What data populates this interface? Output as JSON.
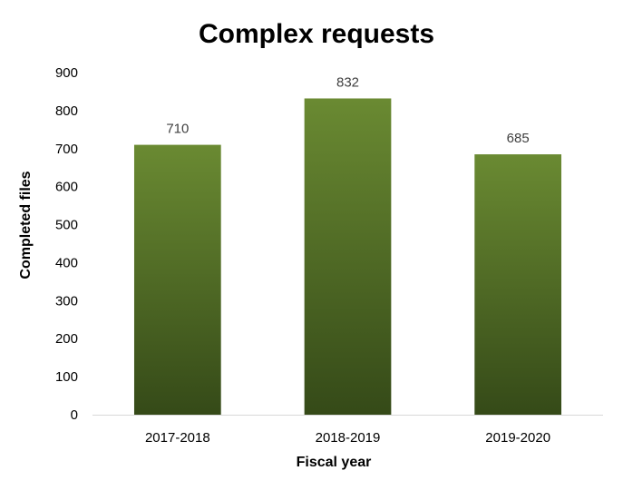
{
  "chart_data": {
    "type": "bar",
    "title": "Complex requests",
    "xlabel": "Fiscal year",
    "ylabel": "Completed files",
    "categories": [
      "2017-2018",
      "2018-2019",
      "2019-2020"
    ],
    "values": [
      710,
      832,
      685
    ],
    "data_labels": [
      "710",
      "832",
      "685"
    ],
    "ylim": [
      0,
      900
    ],
    "yticks": [
      0,
      100,
      200,
      300,
      400,
      500,
      600,
      700,
      800,
      900
    ],
    "grid": false,
    "legend": "none",
    "bar_color_top": "#6a8a32",
    "bar_color_bottom": "#354a18"
  }
}
